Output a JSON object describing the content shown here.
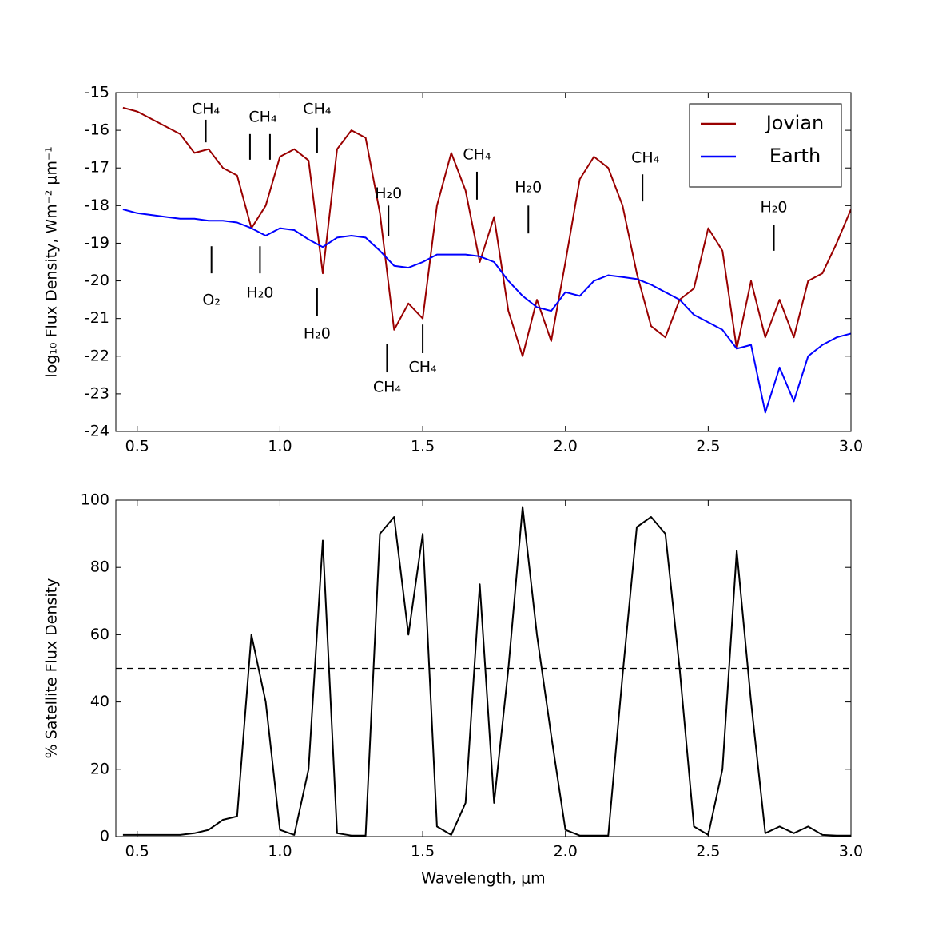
{
  "chart_data": [
    {
      "type": "line",
      "ylabel": "log₁₀ Flux Density, Wm⁻² μm⁻¹",
      "x": [
        0.45,
        0.5,
        0.55,
        0.6,
        0.65,
        0.7,
        0.75,
        0.8,
        0.85,
        0.9,
        0.95,
        1.0,
        1.05,
        1.1,
        1.15,
        1.2,
        1.25,
        1.3,
        1.35,
        1.4,
        1.45,
        1.5,
        1.55,
        1.6,
        1.65,
        1.7,
        1.75,
        1.8,
        1.85,
        1.9,
        1.95,
        2.0,
        2.05,
        2.1,
        2.15,
        2.2,
        2.25,
        2.3,
        2.35,
        2.4,
        2.45,
        2.5,
        2.55,
        2.6,
        2.65,
        2.7,
        2.75,
        2.8,
        2.85,
        2.9,
        2.95,
        3.0
      ],
      "series": [
        {
          "name": "Jovian",
          "color": "#990000",
          "values": [
            -15.4,
            -15.5,
            -15.7,
            -15.9,
            -16.1,
            -16.6,
            -16.5,
            -17.0,
            -17.2,
            -18.6,
            -18.0,
            -16.7,
            -16.5,
            -16.8,
            -19.8,
            -16.5,
            -16.0,
            -16.2,
            -18.2,
            -21.3,
            -20.6,
            -21.0,
            -18.0,
            -16.6,
            -17.6,
            -19.5,
            -18.3,
            -20.8,
            -22.0,
            -20.5,
            -21.6,
            -19.5,
            -17.3,
            -16.7,
            -17.0,
            -18.0,
            -19.8,
            -21.2,
            -21.5,
            -20.5,
            -20.2,
            -18.6,
            -19.2,
            -21.8,
            -20.0,
            -21.5,
            -20.5,
            -21.5,
            -20.0,
            -19.8,
            -19.0,
            -18.1
          ]
        },
        {
          "name": "Earth",
          "color": "#0000ff",
          "values": [
            -18.1,
            -18.2,
            -18.25,
            -18.3,
            -18.35,
            -18.35,
            -18.4,
            -18.4,
            -18.45,
            -18.6,
            -18.8,
            -18.6,
            -18.65,
            -18.9,
            -19.1,
            -18.85,
            -18.8,
            -18.85,
            -19.2,
            -19.6,
            -19.65,
            -19.5,
            -19.3,
            -19.3,
            -19.3,
            -19.35,
            -19.5,
            -20.0,
            -20.4,
            -20.7,
            -20.8,
            -20.3,
            -20.4,
            -20.0,
            -19.85,
            -19.9,
            -19.95,
            -20.1,
            -20.3,
            -20.5,
            -20.9,
            -21.1,
            -21.3,
            -21.8,
            -21.7,
            -23.5,
            -22.3,
            -23.2,
            -22.0,
            -21.7,
            -21.5,
            -21.4
          ]
        }
      ],
      "xlim": [
        0.425,
        3.0
      ],
      "xticks": [
        0.5,
        {
          "value": 1,
          "label": "1.0"
        },
        1.5,
        {
          "value": 2,
          "label": "2.0"
        },
        2.5,
        {
          "value": 3,
          "label": "3.0"
        }
      ],
      "ylim": [
        -24,
        -15
      ],
      "yticks": [
        -24,
        -23,
        -22,
        -21,
        -20,
        -19,
        -18,
        -17,
        -16,
        -15
      ],
      "legend": "upper right",
      "annotations": [
        {
          "text": "CH₄",
          "x": 0.74,
          "y": -15.45,
          "lines": [
            [
              0.74,
              -15.72,
              -16.32
            ]
          ]
        },
        {
          "text": "CH₄",
          "x": 0.94,
          "y": -15.66,
          "lines": [
            [
              0.895,
              -16.1,
              -16.78
            ],
            [
              0.965,
              -16.1,
              -16.78
            ]
          ]
        },
        {
          "text": "CH₄",
          "x": 1.13,
          "y": -15.45,
          "lines": [
            [
              1.13,
              -15.93,
              -16.61
            ]
          ]
        },
        {
          "text": "H₂0",
          "x": 1.38,
          "y": -17.68,
          "lines": [
            [
              1.38,
              -18.0,
              -18.82
            ]
          ]
        },
        {
          "text": "CH₄",
          "x": 1.69,
          "y": -16.66,
          "lines": [
            [
              1.69,
              -17.1,
              -17.84
            ]
          ]
        },
        {
          "text": "H₂0",
          "x": 1.87,
          "y": -17.53,
          "lines": [
            [
              1.87,
              -18.0,
              -18.74
            ]
          ]
        },
        {
          "text": "CH₄",
          "x": 2.28,
          "y": -16.74,
          "lines": [
            [
              2.27,
              -17.17,
              -17.89
            ]
          ]
        },
        {
          "text": "H₂0",
          "x": 2.73,
          "y": -18.06,
          "lines": [
            [
              2.73,
              -18.52,
              -19.2
            ]
          ]
        },
        {
          "text": "O₂",
          "x": 0.76,
          "y": -20.52,
          "lines": [
            [
              0.76,
              -19.08,
              -19.8
            ]
          ]
        },
        {
          "text": "H₂0",
          "x": 0.93,
          "y": -20.33,
          "lines": [
            [
              0.93,
              -19.08,
              -19.8
            ]
          ]
        },
        {
          "text": "H₂0",
          "x": 1.13,
          "y": -21.41,
          "lines": [
            [
              1.13,
              -20.18,
              -20.94
            ]
          ]
        },
        {
          "text": "CH₄",
          "x": 1.375,
          "y": -22.83,
          "lines": [
            [
              1.375,
              -21.67,
              -22.43
            ]
          ]
        },
        {
          "text": "CH₄",
          "x": 1.5,
          "y": -22.3,
          "lines": [
            [
              1.5,
              -21.16,
              -21.92
            ]
          ]
        }
      ]
    },
    {
      "type": "line",
      "xlabel": "Wavelength, μm",
      "ylabel": "% Satellite Flux Density",
      "x": [
        0.45,
        0.5,
        0.55,
        0.6,
        0.65,
        0.7,
        0.75,
        0.8,
        0.85,
        0.9,
        0.95,
        1.0,
        1.05,
        1.1,
        1.15,
        1.2,
        1.25,
        1.3,
        1.35,
        1.4,
        1.45,
        1.5,
        1.55,
        1.6,
        1.65,
        1.7,
        1.75,
        1.8,
        1.85,
        1.9,
        1.95,
        2.0,
        2.05,
        2.1,
        2.15,
        2.2,
        2.25,
        2.3,
        2.35,
        2.4,
        2.45,
        2.5,
        2.55,
        2.6,
        2.65,
        2.7,
        2.75,
        2.8,
        2.85,
        2.9,
        2.95,
        3.0
      ],
      "series": [
        {
          "color": "#000000",
          "values": [
            0.5,
            0.5,
            0.5,
            0.5,
            0.5,
            1,
            2,
            5,
            6,
            60,
            40,
            2,
            0.5,
            20,
            88,
            1,
            0.3,
            0.3,
            90,
            95,
            60,
            90,
            3,
            0.5,
            10,
            75,
            10,
            50,
            98,
            60,
            30,
            2,
            0.3,
            0.3,
            0.3,
            48,
            92,
            95,
            90,
            50,
            3,
            0.5,
            20,
            85,
            40,
            1,
            3,
            1,
            3,
            0.5,
            0.3,
            0.3
          ]
        }
      ],
      "hline": 50,
      "xlim": [
        0.425,
        3.0
      ],
      "xticks": [
        0.5,
        {
          "value": 1,
          "label": "1.0"
        },
        1.5,
        {
          "value": 2,
          "label": "2.0"
        },
        2.5,
        {
          "value": 3,
          "label": "3.0"
        }
      ],
      "ylim": [
        0,
        100
      ],
      "yticks": [
        0,
        20,
        40,
        60,
        80,
        100
      ]
    }
  ]
}
